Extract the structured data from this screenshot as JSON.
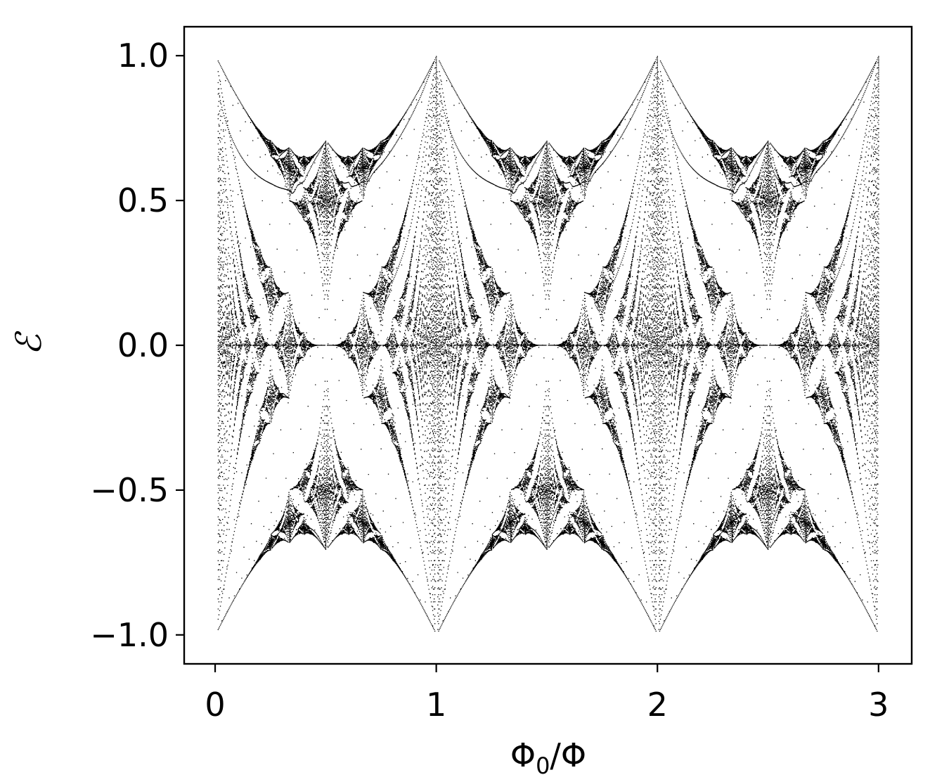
{
  "chart_data": {
    "type": "scatter",
    "title": "",
    "xlabel": "Φ0/Φ",
    "ylabel": "ℰ",
    "xlim": [
      -0.14,
      3.15
    ],
    "ylim": [
      -1.1,
      1.1
    ],
    "x_ticks": [
      {
        "value": 0,
        "label": "0"
      },
      {
        "value": 1,
        "label": "1"
      },
      {
        "value": 2,
        "label": "2"
      },
      {
        "value": 3,
        "label": "3"
      }
    ],
    "y_ticks": [
      {
        "value": 1.0,
        "label": "1.0"
      },
      {
        "value": 0.5,
        "label": "0.5"
      },
      {
        "value": 0.0,
        "label": "0.0"
      },
      {
        "value": -0.5,
        "label": "−0.5"
      },
      {
        "value": -1.0,
        "label": "−1.0"
      }
    ],
    "series": [
      {
        "model": "hofstadter_butterfly_spectrum",
        "x_range": [
          0.01,
          3.0
        ],
        "y_range": [
          -1.0,
          1.0
        ],
        "period": 1,
        "color": "#000000"
      }
    ],
    "grid": false,
    "legend": "none"
  }
}
